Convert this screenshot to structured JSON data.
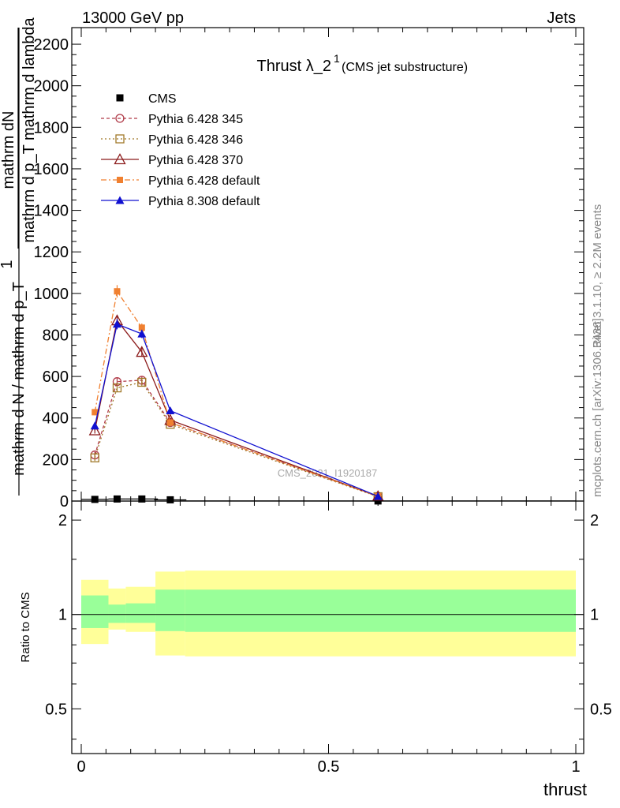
{
  "header": {
    "energy_label": "13000 GeV pp",
    "process_label": "Jets"
  },
  "side_labels": {
    "rivet": "Rivet 3.1.10, ≥ 2.2M events",
    "mcplots": "mcplots.cern.ch [arXiv:1306.3436]"
  },
  "watermark": "CMS_2021_I1920187",
  "chart_data": [
    {
      "type": "line",
      "title": "Thrust λ_2",
      "title_sup": "1",
      "subtitle": "(CMS jet substructure)",
      "ylabel_num": "mathrm dN",
      "ylabel_den": "mathrm d p_T mathrm d lambda",
      "ylabel_prefix": "1",
      "ylabel_prefix_den": "mathrm d N / mathrm d p_T",
      "xlim": [
        0,
        1
      ],
      "ylim": [
        0,
        2280
      ],
      "yticks": [
        0,
        200,
        400,
        600,
        800,
        1000,
        1200,
        1400,
        1600,
        1800,
        2000,
        2200
      ],
      "ytick_labels": [
        "0",
        "200",
        "400",
        "600",
        "800",
        "1000",
        "1200",
        "1400",
        "1600",
        "1800",
        "2000",
        "2200"
      ],
      "legend_position": "top-left",
      "series": [
        {
          "name": "CMS",
          "color": "#000000",
          "marker": "square-filled",
          "x": [
            0.0275,
            0.0725,
            0.1225,
            0.18,
            0.6
          ],
          "xerr": [
            0.0275,
            0.0175,
            0.0325,
            0.0325,
            0.4
          ],
          "y": [
            8,
            10,
            10,
            6,
            0.5
          ]
        },
        {
          "name": "Pythia 6.428 345",
          "color": "#b03a48",
          "marker": "circle-open",
          "dash": "4,3",
          "x": [
            0.0275,
            0.0725,
            0.1225,
            0.18,
            0.6
          ],
          "y": [
            222,
            575,
            582,
            378,
            22
          ],
          "yerr": [
            15,
            20,
            20,
            12,
            3
          ]
        },
        {
          "name": "Pythia 6.428 346",
          "color": "#a07828",
          "marker": "square-open",
          "dash": "2,3",
          "x": [
            0.0275,
            0.0725,
            0.1225,
            0.18,
            0.6
          ],
          "y": [
            208,
            545,
            572,
            370,
            21
          ],
          "yerr": [
            15,
            20,
            20,
            12,
            3
          ]
        },
        {
          "name": "Pythia 6.428 370",
          "color": "#8b1a1a",
          "marker": "triangle-open",
          "dash": "",
          "x": [
            0.0275,
            0.0725,
            0.1225,
            0.18,
            0.6
          ],
          "y": [
            340,
            870,
            718,
            390,
            23
          ],
          "yerr": [
            15,
            25,
            20,
            12,
            3
          ]
        },
        {
          "name": "Pythia 6.428 default",
          "color": "#f08030",
          "marker": "square-filled-small",
          "dash": "7,3,2,3",
          "x": [
            0.0275,
            0.0725,
            0.1225,
            0.18,
            0.6
          ],
          "y": [
            428,
            1010,
            835,
            378,
            23
          ],
          "yerr": [
            15,
            30,
            20,
            12,
            3
          ]
        },
        {
          "name": "Pythia 8.308 default",
          "color": "#1010d0",
          "marker": "triangle-filled",
          "dash": "",
          "x": [
            0.0275,
            0.0725,
            0.1225,
            0.18,
            0.6
          ],
          "y": [
            362,
            852,
            805,
            435,
            23
          ],
          "yerr": [
            15,
            25,
            20,
            12,
            3
          ]
        }
      ]
    },
    {
      "type": "area",
      "ylabel": "Ratio to CMS",
      "xlabel": "thrust",
      "xlim": [
        0,
        1
      ],
      "ylim": [
        0.36,
        2.3
      ],
      "ylog": true,
      "yticks": [
        0.5,
        1,
        2
      ],
      "ytick_labels": [
        "0.5",
        "1",
        "2"
      ],
      "xticks": [
        0,
        0.5,
        1
      ],
      "xtick_labels": [
        "0",
        "0.5",
        "1"
      ],
      "bands": {
        "yellow_color": "#ffff99",
        "green_color": "#99ff99",
        "bins": [
          {
            "x0": 0.0,
            "x1": 0.055,
            "y_lo": 0.805,
            "y_hi": 1.29,
            "g_lo": 0.905,
            "g_hi": 1.15
          },
          {
            "x0": 0.055,
            "x1": 0.09,
            "y_lo": 0.895,
            "y_hi": 1.21,
            "g_lo": 0.94,
            "g_hi": 1.075
          },
          {
            "x0": 0.09,
            "x1": 0.15,
            "y_lo": 0.88,
            "y_hi": 1.225,
            "g_lo": 0.94,
            "g_hi": 1.085
          },
          {
            "x0": 0.15,
            "x1": 0.21,
            "y_lo": 0.74,
            "y_hi": 1.37,
            "g_lo": 0.885,
            "g_hi": 1.2
          },
          {
            "x0": 0.21,
            "x1": 1.0,
            "y_lo": 0.735,
            "y_hi": 1.38,
            "g_lo": 0.88,
            "g_hi": 1.2
          }
        ]
      }
    }
  ]
}
